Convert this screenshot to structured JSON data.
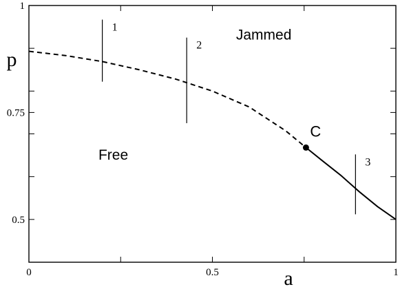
{
  "chart_data": {
    "type": "line",
    "title": "",
    "xlabel": "a",
    "ylabel": "p",
    "xlim": [
      0,
      1
    ],
    "ylim": [
      0.4,
      1
    ],
    "x_ticks": [
      0,
      0.25,
      0.5,
      0.75,
      1
    ],
    "y_ticks": [
      0.4,
      0.5,
      0.6,
      0.7,
      0.75,
      0.8,
      0.9,
      1
    ],
    "x_tick_labels": [
      {
        "value": 0,
        "label": "0"
      },
      {
        "value": 0.5,
        "label": "0.5"
      },
      {
        "value": 1,
        "label": "1"
      }
    ],
    "y_tick_labels": [
      {
        "value": 0.5,
        "label": "0.5"
      },
      {
        "value": 0.75,
        "label": "0.75"
      },
      {
        "value": 1,
        "label": "1"
      }
    ],
    "grid": false,
    "series": [
      {
        "style": "dashed",
        "x": [
          0,
          0.1,
          0.2,
          0.3,
          0.4,
          0.5,
          0.6,
          0.7,
          0.755
        ],
        "y": [
          0.893,
          0.883,
          0.869,
          0.85,
          0.828,
          0.8,
          0.763,
          0.707,
          0.668
        ]
      },
      {
        "style": "solid",
        "x": [
          0.755,
          0.8,
          0.85,
          0.9,
          0.95,
          1
        ],
        "y": [
          0.668,
          0.637,
          0.603,
          0.565,
          0.53,
          0.5
        ]
      }
    ],
    "critical_point": {
      "label": "C",
      "x": 0.755,
      "y": 0.668
    },
    "regions": [
      {
        "label": "Jammed",
        "x": 0.64,
        "y": 0.92
      },
      {
        "label": "Free",
        "x": 0.23,
        "y": 0.64
      }
    ],
    "vertical_markers": [
      {
        "label": "1",
        "x": 0.2,
        "y_from": 0.822,
        "y_to": 0.967
      },
      {
        "label": "2",
        "x": 0.43,
        "y_from": 0.725,
        "y_to": 0.925
      },
      {
        "label": "3",
        "x": 0.89,
        "y_from": 0.512,
        "y_to": 0.652
      }
    ]
  }
}
